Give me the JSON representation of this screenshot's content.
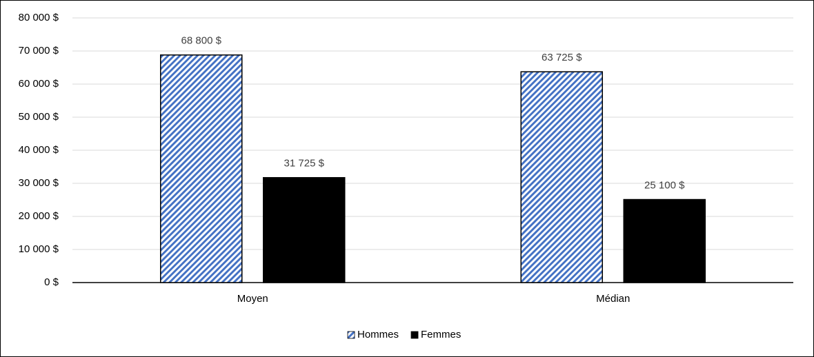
{
  "chart_data": {
    "type": "bar",
    "categories": [
      "Moyen",
      "Médian"
    ],
    "series": [
      {
        "name": "Hommes",
        "color": "#4472c4",
        "pattern": "hatch",
        "values": [
          68800,
          63725
        ],
        "value_labels": [
          "68 800 $",
          "63 725 $"
        ]
      },
      {
        "name": "Femmes",
        "color": "#000000",
        "values": [
          31725,
          25100
        ],
        "value_labels": [
          "31 725 $",
          "25 100 $"
        ]
      }
    ],
    "ylim": [
      0,
      80000
    ],
    "yticks": [
      {
        "value": 0,
        "label": "0 $"
      },
      {
        "value": 10000,
        "label": "10 000 $"
      },
      {
        "value": 20000,
        "label": "20 000 $"
      },
      {
        "value": 30000,
        "label": "30 000 $"
      },
      {
        "value": 40000,
        "label": "40 000 $"
      },
      {
        "value": 50000,
        "label": "50 000 $"
      },
      {
        "value": 60000,
        "label": "60 000 $"
      },
      {
        "value": 70000,
        "label": "70 000 $"
      },
      {
        "value": 80000,
        "label": "80 000 $"
      }
    ],
    "grid": true,
    "legend": "bottom"
  }
}
